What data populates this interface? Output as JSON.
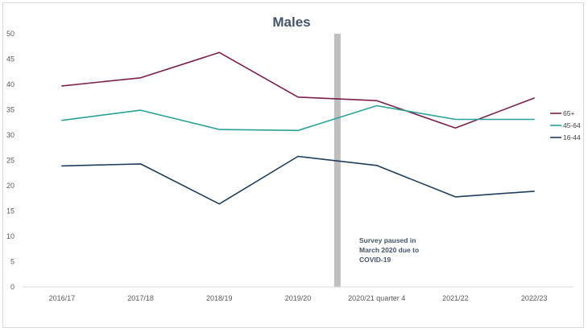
{
  "chart_data": {
    "type": "line",
    "title": "Males",
    "xlabel": "",
    "ylabel": "",
    "categories": [
      "2016/17",
      "2017/18",
      "2018/19",
      "2019/20",
      "2020/21 quarter 4",
      "2021/22",
      "2022/23"
    ],
    "ylim": [
      0,
      50
    ],
    "yticks": [
      0,
      5,
      10,
      15,
      20,
      25,
      30,
      35,
      40,
      45,
      50
    ],
    "grid": false,
    "legend_position": "right",
    "series": [
      {
        "name": "65+",
        "color": "#7b1f4e",
        "values": [
          39.7,
          41.3,
          46.3,
          37.5,
          36.8,
          31.4,
          37.3
        ]
      },
      {
        "name": "45-64",
        "color": "#2aa198",
        "values": [
          32.9,
          34.9,
          31.1,
          30.9,
          35.8,
          33.1,
          33.1
        ]
      },
      {
        "name": "16-44",
        "color": "#1f3d5c",
        "values": [
          23.9,
          24.3,
          16.4,
          25.8,
          24.0,
          17.8,
          18.9
        ]
      }
    ],
    "annotation": {
      "lines": [
        "Survey paused in",
        "March 2020 due to",
        "COVID-19"
      ],
      "pause_band_color": "#bfbfbf"
    }
  }
}
